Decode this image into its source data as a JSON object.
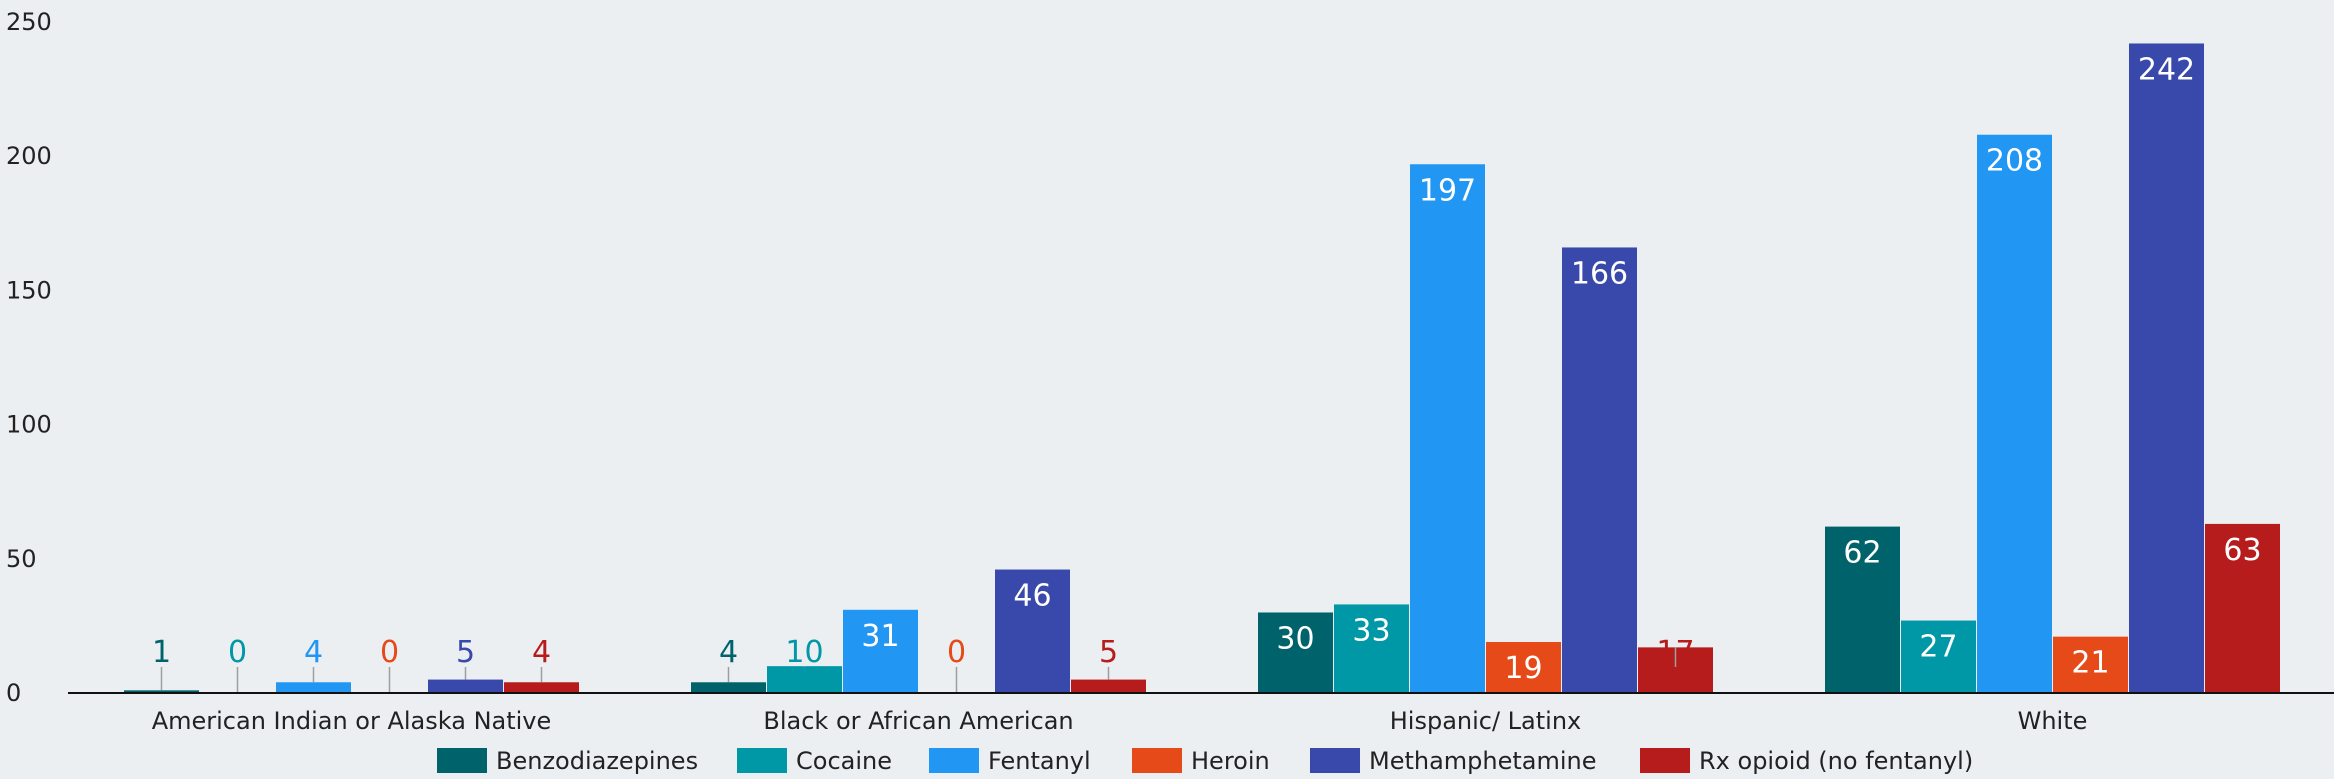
{
  "chart_data": {
    "type": "bar",
    "title": "",
    "xlabel": "",
    "ylabel": "",
    "ylim": [
      0,
      250
    ],
    "yticks": [
      0,
      50,
      100,
      150,
      200,
      250
    ],
    "grid": false,
    "legend_position": "bottom",
    "categories": [
      "American Indian or Alaska Native",
      "Black or African American",
      "Hispanic/ Latinx",
      "White"
    ],
    "series": [
      {
        "name": "Benzodiazepines",
        "color": "#00636b",
        "values": [
          1,
          4,
          30,
          62
        ]
      },
      {
        "name": "Cocaine",
        "color": "#0097a7",
        "values": [
          0,
          10,
          33,
          27
        ]
      },
      {
        "name": "Fentanyl",
        "color": "#2196f3",
        "values": [
          4,
          31,
          197,
          208
        ]
      },
      {
        "name": "Heroin",
        "color": "#e64a19",
        "values": [
          0,
          0,
          19,
          21
        ]
      },
      {
        "name": "Methamphetamine",
        "color": "#3949ab",
        "values": [
          5,
          46,
          166,
          242
        ]
      },
      {
        "name": "Rx opioid (no fentanyl)",
        "color": "#b71c1c",
        "values": [
          4,
          5,
          17,
          63
        ]
      }
    ]
  }
}
